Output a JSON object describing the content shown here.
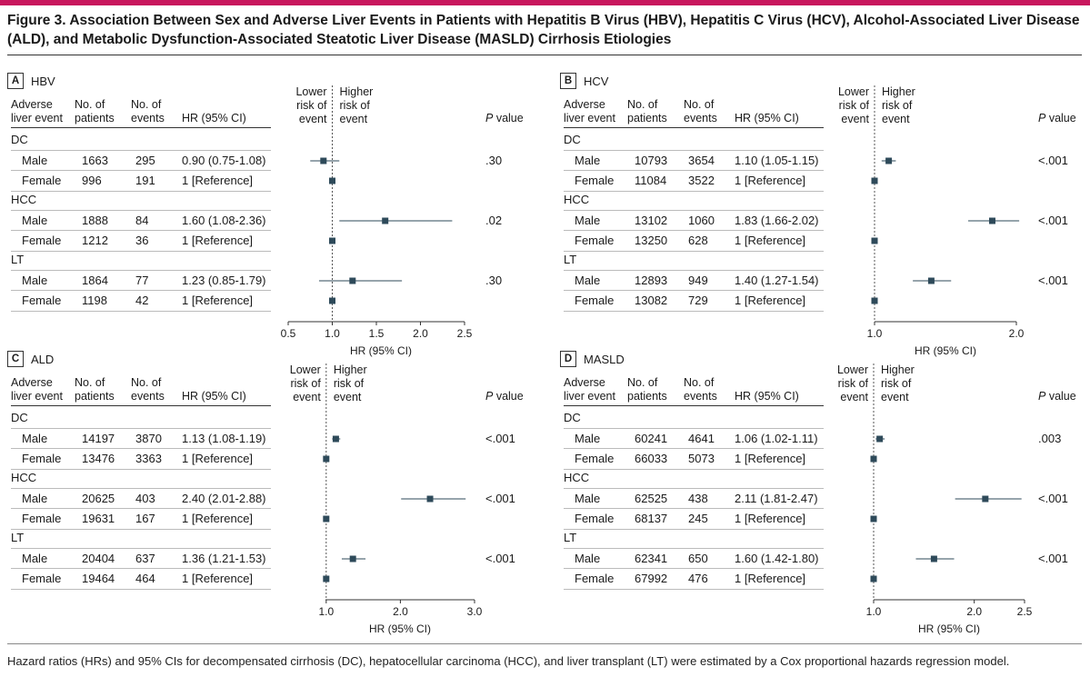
{
  "title": "Figure 3. Association Between Sex and Adverse Liver Events in Patients with Hepatitis B Virus (HBV), Hepatitis C Virus (HCV), Alcohol-Associated Liver Disease (ALD), and Metabolic Dysfunction-Associated Steatotic Liver Disease (MASLD) Cirrhosis Etiologies",
  "footnote": "Hazard ratios (HRs) and 95% CIs for decompensated cirrhosis (DC), hepatocellular carcinoma (HCC), and liver transplant (LT) were estimated by a Cox proportional hazards regression model.",
  "headers": {
    "event": [
      "Adverse",
      "liver event"
    ],
    "patients": [
      "No. of",
      "patients"
    ],
    "events": [
      "No. of",
      "events"
    ],
    "hr": "HR (95% CI)",
    "lower": [
      "Lower",
      "risk of",
      "event"
    ],
    "higher": [
      "Higher",
      "risk of",
      "event"
    ],
    "p_italic": "P",
    "p_rest": " value",
    "axis_label": "HR (95% CI)"
  },
  "colors": {
    "accent": "#c8175d",
    "marker": "#2e4a5a"
  },
  "chart_data": [
    {
      "type": "forest",
      "letter": "A",
      "name": "HBV",
      "xlim": [
        0.5,
        2.5
      ],
      "ticks": [
        "0.5",
        "1.0",
        "1.5",
        "2.0",
        "2.5"
      ],
      "tick_values": [
        0.5,
        1.0,
        1.5,
        2.0,
        2.5
      ],
      "groups": [
        {
          "label": "DC",
          "rows": [
            {
              "sex": "Male",
              "patients": "1663",
              "events": "295",
              "hr_text": "0.90 (0.75-1.08)",
              "hr": 0.9,
              "lo": 0.75,
              "hi": 1.08,
              "p": ".30"
            },
            {
              "sex": "Female",
              "patients": "996",
              "events": "191",
              "hr_text": "1 [Reference]",
              "hr": 1.0,
              "p": ""
            }
          ]
        },
        {
          "label": "HCC",
          "rows": [
            {
              "sex": "Male",
              "patients": "1888",
              "events": "84",
              "hr_text": "1.60 (1.08-2.36)",
              "hr": 1.6,
              "lo": 1.08,
              "hi": 2.36,
              "p": ".02"
            },
            {
              "sex": "Female",
              "patients": "1212",
              "events": "36",
              "hr_text": "1 [Reference]",
              "hr": 1.0,
              "p": ""
            }
          ]
        },
        {
          "label": "LT",
          "rows": [
            {
              "sex": "Male",
              "patients": "1864",
              "events": "77",
              "hr_text": "1.23 (0.85-1.79)",
              "hr": 1.23,
              "lo": 0.85,
              "hi": 1.79,
              "p": ".30"
            },
            {
              "sex": "Female",
              "patients": "1198",
              "events": "42",
              "hr_text": "1 [Reference]",
              "hr": 1.0,
              "p": ""
            }
          ]
        }
      ]
    },
    {
      "type": "forest",
      "letter": "B",
      "name": "HCV",
      "xlim": [
        1.0,
        2.0
      ],
      "ticks": [
        "1.0",
        "2.0"
      ],
      "tick_values": [
        1.0,
        2.0
      ],
      "groups": [
        {
          "label": "DC",
          "rows": [
            {
              "sex": "Male",
              "patients": "10793",
              "events": "3654",
              "hr_text": "1.10 (1.05-1.15)",
              "hr": 1.1,
              "lo": 1.05,
              "hi": 1.15,
              "p": "<.001"
            },
            {
              "sex": "Female",
              "patients": "11084",
              "events": "3522",
              "hr_text": "1 [Reference]",
              "hr": 1.0,
              "p": ""
            }
          ]
        },
        {
          "label": "HCC",
          "rows": [
            {
              "sex": "Male",
              "patients": "13102",
              "events": "1060",
              "hr_text": "1.83 (1.66-2.02)",
              "hr": 1.83,
              "lo": 1.66,
              "hi": 2.02,
              "p": "<.001"
            },
            {
              "sex": "Female",
              "patients": "13250",
              "events": "628",
              "hr_text": "1 [Reference]",
              "hr": 1.0,
              "p": ""
            }
          ]
        },
        {
          "label": "LT",
          "rows": [
            {
              "sex": "Male",
              "patients": "12893",
              "events": "949",
              "hr_text": "1.40 (1.27-1.54)",
              "hr": 1.4,
              "lo": 1.27,
              "hi": 1.54,
              "p": "<.001"
            },
            {
              "sex": "Female",
              "patients": "13082",
              "events": "729",
              "hr_text": "1 [Reference]",
              "hr": 1.0,
              "p": ""
            }
          ]
        }
      ]
    },
    {
      "type": "forest",
      "letter": "C",
      "name": "ALD",
      "xlim": [
        0.99,
        3.0
      ],
      "ticks": [
        "1.0",
        "2.0",
        "3.0"
      ],
      "tick_values": [
        1.0,
        2.0,
        3.0
      ],
      "groups": [
        {
          "label": "DC",
          "rows": [
            {
              "sex": "Male",
              "patients": "14197",
              "events": "3870",
              "hr_text": "1.13 (1.08-1.19)",
              "hr": 1.13,
              "lo": 1.08,
              "hi": 1.19,
              "p": "<.001"
            },
            {
              "sex": "Female",
              "patients": "13476",
              "events": "3363",
              "hr_text": "1 [Reference]",
              "hr": 1.0,
              "p": ""
            }
          ]
        },
        {
          "label": "HCC",
          "rows": [
            {
              "sex": "Male",
              "patients": "20625",
              "events": "403",
              "hr_text": "2.40 (2.01-2.88)",
              "hr": 2.4,
              "lo": 2.01,
              "hi": 2.88,
              "p": "<.001"
            },
            {
              "sex": "Female",
              "patients": "19631",
              "events": "167",
              "hr_text": "1 [Reference]",
              "hr": 1.0,
              "p": ""
            }
          ]
        },
        {
          "label": "LT",
          "rows": [
            {
              "sex": "Male",
              "patients": "20404",
              "events": "637",
              "hr_text": "1.36 (1.21-1.53)",
              "hr": 1.36,
              "lo": 1.21,
              "hi": 1.53,
              "p": "<.001"
            },
            {
              "sex": "Female",
              "patients": "19464",
              "events": "464",
              "hr_text": "1 [Reference]",
              "hr": 1.0,
              "p": ""
            }
          ]
        }
      ]
    },
    {
      "type": "forest",
      "letter": "D",
      "name": "MASLD",
      "xlim": [
        1.0,
        2.5
      ],
      "ticks": [
        "1.0",
        "2.0",
        "2.5"
      ],
      "tick_values": [
        1.0,
        2.0,
        2.5
      ],
      "groups": [
        {
          "label": "DC",
          "rows": [
            {
              "sex": "Male",
              "patients": "60241",
              "events": "4641",
              "hr_text": "1.06 (1.02-1.11)",
              "hr": 1.06,
              "lo": 1.02,
              "hi": 1.11,
              "p": ".003"
            },
            {
              "sex": "Female",
              "patients": "66033",
              "events": "5073",
              "hr_text": "1 [Reference]",
              "hr": 1.0,
              "p": ""
            }
          ]
        },
        {
          "label": "HCC",
          "rows": [
            {
              "sex": "Male",
              "patients": "62525",
              "events": "438",
              "hr_text": "2.11 (1.81-2.47)",
              "hr": 2.11,
              "lo": 1.81,
              "hi": 2.47,
              "p": "<.001"
            },
            {
              "sex": "Female",
              "patients": "68137",
              "events": "245",
              "hr_text": "1 [Reference]",
              "hr": 1.0,
              "p": ""
            }
          ]
        },
        {
          "label": "LT",
          "rows": [
            {
              "sex": "Male",
              "patients": "62341",
              "events": "650",
              "hr_text": "1.60 (1.42-1.80)",
              "hr": 1.6,
              "lo": 1.42,
              "hi": 1.8,
              "p": "<.001"
            },
            {
              "sex": "Female",
              "patients": "67992",
              "events": "476",
              "hr_text": "1 [Reference]",
              "hr": 1.0,
              "p": ""
            }
          ]
        }
      ]
    }
  ]
}
